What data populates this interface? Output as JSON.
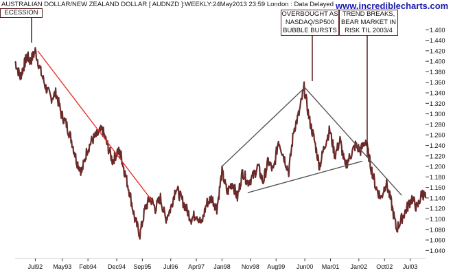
{
  "header": {
    "title": "AUSTRALIAN DOLLAR/NEW ZEALAND DOLLAR [ AUDNZD ]:WEEKLY:24May2013 23:59 London : Data Delayed",
    "watermark": "www.incrediblecharts.com"
  },
  "annotations": {
    "recession": "ECESSION",
    "overbought": [
      "OVERBOUGHT AS",
      "NASDAQ/SP500",
      "BUBBLE BURSTS"
    ],
    "trend": [
      "TREND BREAKS,",
      "BEAR MARKET IN",
      "RISK TIL 2003/4"
    ]
  },
  "colors": {
    "price": "#6b2a2a",
    "trend_red": "#e8322c",
    "trend_gray": "#555555",
    "annotation_border": "#5a1f1f",
    "watermark": "#1a1aaa"
  },
  "chart_data": {
    "type": "line",
    "title": "AUSTRALIAN DOLLAR/NEW ZEALAND DOLLAR [ AUDNZD ]:WEEKLY:24May2013 23:59 London : Data Delayed",
    "ylim": [
      1.03,
      1.48
    ],
    "y_ticks": [
      "1.460",
      "1.440",
      "1.420",
      "1.400",
      "1.380",
      "1.360",
      "1.340",
      "1.320",
      "1.300",
      "1.280",
      "1.260",
      "1.240",
      "1.220",
      "1.200",
      "1.180",
      "1.160",
      "1.140",
      "1.120",
      "1.100",
      "1.080",
      "1.060",
      "1.040"
    ],
    "x_ticks": [
      "Jul92",
      "May93",
      "Feb94",
      "Dec94",
      "Sep95",
      "Jul96",
      "Apr97",
      "Jan98",
      "Nov98",
      "Aug99",
      "Jun00",
      "Mar01",
      "Jan02",
      "Oct02",
      "Jul03"
    ],
    "x_tick_pos": [
      1992.54,
      1993.33,
      1994.08,
      1994.92,
      1995.67,
      1996.5,
      1997.25,
      1998.0,
      1998.83,
      1999.58,
      2000.42,
      2001.17,
      2002.0,
      2002.75,
      2003.5
    ],
    "xlim": [
      1991.95,
      2003.95
    ],
    "grid": false,
    "series": [
      {
        "x": [
          1991.95,
          1992.1,
          1992.2,
          1992.3,
          1992.4,
          1992.54,
          1992.7,
          1992.85,
          1993.0,
          1993.15,
          1993.3,
          1993.45,
          1993.6,
          1993.75,
          1993.9,
          1994.05,
          1994.2,
          1994.35,
          1994.5,
          1994.65,
          1994.8,
          1994.95,
          1995.05,
          1995.15,
          1995.3,
          1995.45,
          1995.6,
          1995.75,
          1995.9,
          1996.05,
          1996.2,
          1996.35,
          1996.5,
          1996.65,
          1996.8,
          1996.95,
          1997.1,
          1997.25,
          1997.4,
          1997.55,
          1997.7,
          1997.85,
          1998.0,
          1998.15,
          1998.3,
          1998.45,
          1998.6,
          1998.75,
          1998.9,
          1999.05,
          1999.2,
          1999.35,
          1999.5,
          1999.65,
          1999.8,
          1999.95,
          2000.1,
          2000.25,
          2000.4,
          2000.55,
          2000.7,
          2000.85,
          2001.0,
          2001.15,
          2001.3,
          2001.45,
          2001.6,
          2001.75,
          2001.9,
          2002.05,
          2002.2,
          2002.35,
          2002.5,
          2002.65,
          2002.8,
          2002.95,
          2003.1,
          2003.25,
          2003.4,
          2003.55,
          2003.7,
          2003.85,
          2003.95
        ],
        "values": [
          1.4,
          1.37,
          1.39,
          1.41,
          1.4,
          1.42,
          1.38,
          1.35,
          1.33,
          1.34,
          1.3,
          1.28,
          1.25,
          1.21,
          1.19,
          1.23,
          1.25,
          1.26,
          1.27,
          1.24,
          1.21,
          1.23,
          1.22,
          1.19,
          1.15,
          1.1,
          1.07,
          1.12,
          1.14,
          1.12,
          1.14,
          1.1,
          1.12,
          1.16,
          1.14,
          1.12,
          1.1,
          1.11,
          1.09,
          1.13,
          1.14,
          1.12,
          1.19,
          1.15,
          1.17,
          1.14,
          1.19,
          1.17,
          1.18,
          1.2,
          1.17,
          1.21,
          1.19,
          1.25,
          1.22,
          1.19,
          1.27,
          1.3,
          1.35,
          1.29,
          1.25,
          1.2,
          1.24,
          1.27,
          1.22,
          1.25,
          1.2,
          1.22,
          1.24,
          1.23,
          1.25,
          1.2,
          1.16,
          1.14,
          1.17,
          1.13,
          1.08,
          1.1,
          1.12,
          1.14,
          1.12,
          1.15,
          1.14
        ]
      }
    ],
    "trendlines": [
      {
        "color": "red",
        "x": [
          1992.61,
          1995.95
        ],
        "y": [
          1.42,
          1.135
        ]
      },
      {
        "color": "gray",
        "x": [
          1998.0,
          2000.42
        ],
        "y": [
          1.2,
          1.35
        ]
      },
      {
        "color": "gray",
        "x": [
          2000.42,
          2003.25
        ],
        "y": [
          1.35,
          1.145
        ]
      },
      {
        "color": "gray",
        "x": [
          1998.75,
          2002.1
        ],
        "y": [
          1.15,
          1.21
        ]
      }
    ]
  }
}
